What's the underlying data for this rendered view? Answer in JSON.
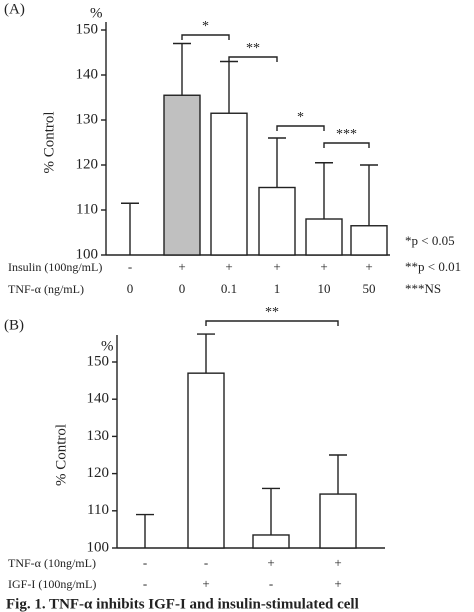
{
  "chart_data": [
    {
      "type": "bar",
      "title": "(A)",
      "unit": "%",
      "ylabel": "% Control",
      "values": [
        100,
        135.5,
        131.5,
        115,
        108,
        106.5
      ],
      "errors": [
        11.5,
        11.5,
        11.5,
        11,
        12.5,
        13.5
      ],
      "colors": [
        "#ffffff",
        "#c0c0c0",
        "#ffffff",
        "#ffffff",
        "#ffffff",
        "#ffffff"
      ],
      "ylim": [
        100,
        150
      ],
      "yticks": [
        100,
        110,
        120,
        130,
        140,
        150
      ],
      "conditions": [
        {
          "label": "Insulin (100ng/mL)",
          "values": [
            "-",
            "+",
            "+",
            "+",
            "+",
            "+"
          ]
        },
        {
          "label": "TNF-α (ng/mL)",
          "values": [
            "0",
            "0",
            "0.1",
            "1",
            "10",
            "50"
          ]
        }
      ],
      "annotations": [
        "*",
        "**",
        "*",
        "***"
      ],
      "notes": [
        "*p < 0.05",
        "**p < 0.01",
        "***NS"
      ]
    },
    {
      "type": "bar",
      "title": "(B)",
      "unit": "%",
      "ylabel": "% Control",
      "values": [
        100,
        147,
        103.5,
        114.5
      ],
      "errors": [
        9,
        10.5,
        12.5,
        10.5
      ],
      "colors": [
        "#ffffff",
        "#ffffff",
        "#ffffff",
        "#ffffff"
      ],
      "ylim": [
        100,
        150
      ],
      "yticks": [
        100,
        110,
        120,
        130,
        140,
        150
      ],
      "conditions": [
        {
          "label": "TNF-α (10ng/mL)",
          "values": [
            "-",
            "-",
            "+",
            "+"
          ]
        },
        {
          "label": "IGF-I (100ng/mL)",
          "values": [
            "-",
            "+",
            "-",
            "+"
          ]
        }
      ],
      "annotations": [
        "**"
      ]
    }
  ],
  "caption": "Fig. 1. TNF-α inhibits IGF-I and insulin-stimulated cell"
}
